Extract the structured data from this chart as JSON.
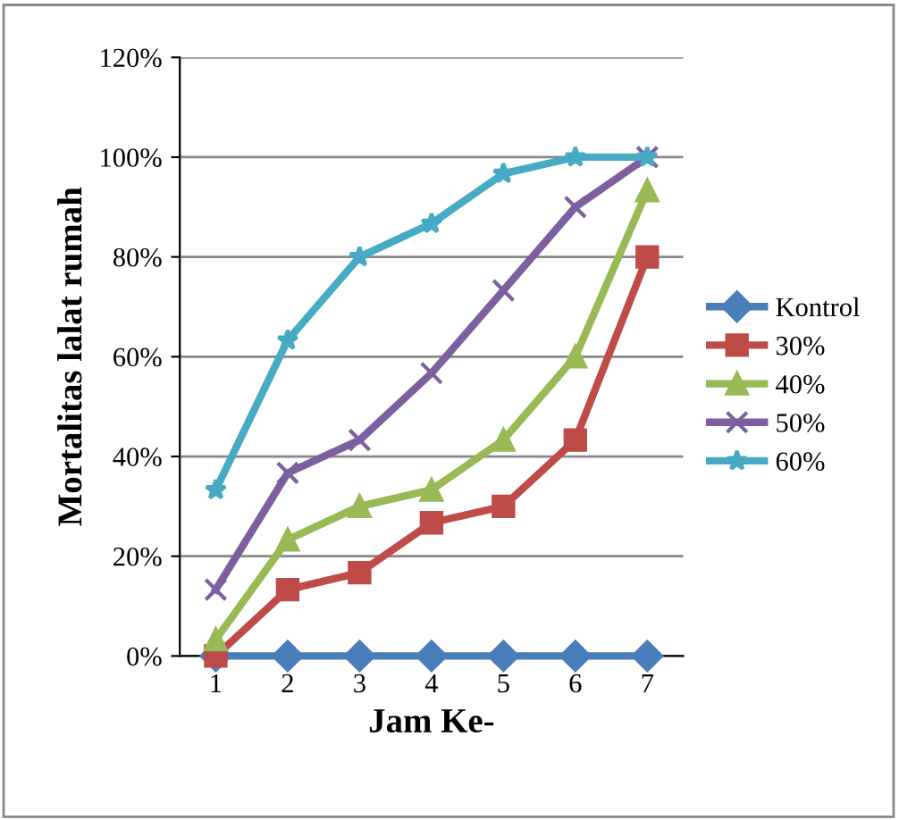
{
  "chart_data": {
    "type": "line",
    "xlabel": "Jam Ke-",
    "ylabel": "Mortalitas lalat rumah",
    "categories": [
      "1",
      "2",
      "3",
      "4",
      "5",
      "6",
      "7"
    ],
    "series": [
      {
        "name": "Kontrol",
        "color": "#4a7ebb",
        "marker": "diamond",
        "values": [
          0,
          0,
          0,
          0,
          0,
          0,
          0
        ]
      },
      {
        "name": "30%",
        "color": "#be4b48",
        "marker": "square",
        "values": [
          0,
          13.3,
          16.7,
          26.7,
          30,
          43.3,
          80
        ]
      },
      {
        "name": "40%",
        "color": "#98b954",
        "marker": "triangle",
        "values": [
          3.3,
          23.3,
          30,
          33.3,
          43.3,
          60,
          93.3
        ]
      },
      {
        "name": "50%",
        "color": "#7d5fa0",
        "marker": "cross",
        "values": [
          13.3,
          36.7,
          43.3,
          56.7,
          73.3,
          90,
          100
        ]
      },
      {
        "name": "60%",
        "color": "#46aac5",
        "marker": "star",
        "values": [
          33.3,
          63.3,
          80,
          86.7,
          96.7,
          100,
          100
        ]
      }
    ],
    "ylim": [
      0,
      120
    ],
    "yticks": [
      {
        "value": 0,
        "label": "0%"
      },
      {
        "value": 20,
        "label": "20%"
      },
      {
        "value": 40,
        "label": "40%"
      },
      {
        "value": 60,
        "label": "60%"
      },
      {
        "value": 80,
        "label": "80%"
      },
      {
        "value": 100,
        "label": "100%"
      },
      {
        "value": 120,
        "label": "120%"
      }
    ],
    "grid": "y",
    "legend": "right",
    "line_style": "solid"
  }
}
